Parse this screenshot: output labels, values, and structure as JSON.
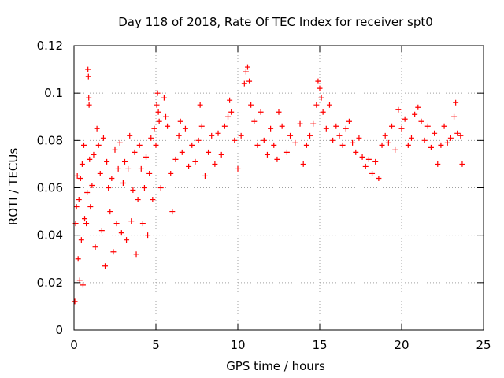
{
  "chart_data": {
    "type": "scatter",
    "title": "Day 118 of 2018, Rate Of TEC Index for receiver spt0",
    "xlabel": "GPS time / hours",
    "ylabel": "ROTI / TECUs",
    "xlim": [
      0,
      25
    ],
    "ylim": [
      0,
      0.12
    ],
    "xticks": [
      0,
      5,
      10,
      15,
      20,
      25
    ],
    "yticks": [
      0,
      0.02,
      0.04,
      0.06,
      0.08,
      0.1,
      0.12
    ],
    "xtick_labels": [
      "0",
      "5",
      "10",
      "15",
      "20",
      "25"
    ],
    "ytick_labels": [
      "0",
      "0.02",
      "0.04",
      "0.06",
      "0.08",
      "0.1",
      "0.12"
    ],
    "grid": true,
    "marker": "+",
    "series": [
      {
        "name": "ROTI",
        "color": "#ff0000",
        "points": [
          [
            0.05,
            0.012
          ],
          [
            0.1,
            0.045
          ],
          [
            0.15,
            0.052
          ],
          [
            0.2,
            0.065
          ],
          [
            0.25,
            0.03
          ],
          [
            0.3,
            0.055
          ],
          [
            0.35,
            0.021
          ],
          [
            0.4,
            0.064
          ],
          [
            0.45,
            0.038
          ],
          [
            0.5,
            0.07
          ],
          [
            0.55,
            0.019
          ],
          [
            0.6,
            0.078
          ],
          [
            0.65,
            0.047
          ],
          [
            0.75,
            0.045
          ],
          [
            0.8,
            0.058
          ],
          [
            0.85,
            0.11
          ],
          [
            0.88,
            0.107
          ],
          [
            0.9,
            0.098
          ],
          [
            0.92,
            0.095
          ],
          [
            0.95,
            0.072
          ],
          [
            1.0,
            0.052
          ],
          [
            1.1,
            0.061
          ],
          [
            1.2,
            0.074
          ],
          [
            1.3,
            0.035
          ],
          [
            1.4,
            0.085
          ],
          [
            1.5,
            0.078
          ],
          [
            1.6,
            0.066
          ],
          [
            1.7,
            0.042
          ],
          [
            1.8,
            0.081
          ],
          [
            1.9,
            0.027
          ],
          [
            2.0,
            0.071
          ],
          [
            2.1,
            0.06
          ],
          [
            2.2,
            0.05
          ],
          [
            2.3,
            0.064
          ],
          [
            2.4,
            0.033
          ],
          [
            2.5,
            0.076
          ],
          [
            2.6,
            0.045
          ],
          [
            2.7,
            0.068
          ],
          [
            2.8,
            0.079
          ],
          [
            2.9,
            0.041
          ],
          [
            3.0,
            0.062
          ],
          [
            3.1,
            0.071
          ],
          [
            3.2,
            0.038
          ],
          [
            3.3,
            0.068
          ],
          [
            3.4,
            0.082
          ],
          [
            3.5,
            0.046
          ],
          [
            3.6,
            0.059
          ],
          [
            3.7,
            0.075
          ],
          [
            3.8,
            0.032
          ],
          [
            3.9,
            0.055
          ],
          [
            4.0,
            0.078
          ],
          [
            4.1,
            0.068
          ],
          [
            4.2,
            0.045
          ],
          [
            4.3,
            0.06
          ],
          [
            4.4,
            0.073
          ],
          [
            4.5,
            0.04
          ],
          [
            4.6,
            0.066
          ],
          [
            4.7,
            0.081
          ],
          [
            4.8,
            0.055
          ],
          [
            4.9,
            0.085
          ],
          [
            5.0,
            0.078
          ],
          [
            5.05,
            0.095
          ],
          [
            5.1,
            0.1
          ],
          [
            5.15,
            0.092
          ],
          [
            5.2,
            0.088
          ],
          [
            5.3,
            0.06
          ],
          [
            5.5,
            0.098
          ],
          [
            5.6,
            0.09
          ],
          [
            5.7,
            0.086
          ],
          [
            5.9,
            0.066
          ],
          [
            6.0,
            0.05
          ],
          [
            6.2,
            0.072
          ],
          [
            6.4,
            0.082
          ],
          [
            6.5,
            0.088
          ],
          [
            6.6,
            0.075
          ],
          [
            6.8,
            0.085
          ],
          [
            7.0,
            0.069
          ],
          [
            7.2,
            0.078
          ],
          [
            7.4,
            0.071
          ],
          [
            7.6,
            0.08
          ],
          [
            7.7,
            0.095
          ],
          [
            7.8,
            0.086
          ],
          [
            8.0,
            0.065
          ],
          [
            8.2,
            0.075
          ],
          [
            8.4,
            0.082
          ],
          [
            8.6,
            0.07
          ],
          [
            8.8,
            0.083
          ],
          [
            9.0,
            0.074
          ],
          [
            9.2,
            0.086
          ],
          [
            9.4,
            0.09
          ],
          [
            9.5,
            0.097
          ],
          [
            9.6,
            0.092
          ],
          [
            9.8,
            0.08
          ],
          [
            10.0,
            0.068
          ],
          [
            10.2,
            0.082
          ],
          [
            10.4,
            0.104
          ],
          [
            10.5,
            0.109
          ],
          [
            10.6,
            0.111
          ],
          [
            10.7,
            0.105
          ],
          [
            10.8,
            0.095
          ],
          [
            11.0,
            0.088
          ],
          [
            11.2,
            0.078
          ],
          [
            11.4,
            0.092
          ],
          [
            11.6,
            0.08
          ],
          [
            11.8,
            0.074
          ],
          [
            12.0,
            0.085
          ],
          [
            12.2,
            0.078
          ],
          [
            12.4,
            0.072
          ],
          [
            12.5,
            0.092
          ],
          [
            12.7,
            0.086
          ],
          [
            13.0,
            0.075
          ],
          [
            13.2,
            0.082
          ],
          [
            13.5,
            0.079
          ],
          [
            13.8,
            0.087
          ],
          [
            14.0,
            0.07
          ],
          [
            14.2,
            0.078
          ],
          [
            14.4,
            0.082
          ],
          [
            14.6,
            0.087
          ],
          [
            14.8,
            0.095
          ],
          [
            14.9,
            0.105
          ],
          [
            15.0,
            0.102
          ],
          [
            15.1,
            0.098
          ],
          [
            15.2,
            0.092
          ],
          [
            15.4,
            0.085
          ],
          [
            15.6,
            0.095
          ],
          [
            15.8,
            0.08
          ],
          [
            16.0,
            0.086
          ],
          [
            16.2,
            0.082
          ],
          [
            16.4,
            0.078
          ],
          [
            16.6,
            0.085
          ],
          [
            16.8,
            0.088
          ],
          [
            17.0,
            0.079
          ],
          [
            17.2,
            0.075
          ],
          [
            17.4,
            0.081
          ],
          [
            17.6,
            0.073
          ],
          [
            17.8,
            0.069
          ],
          [
            18.0,
            0.072
          ],
          [
            18.2,
            0.066
          ],
          [
            18.4,
            0.071
          ],
          [
            18.6,
            0.064
          ],
          [
            18.8,
            0.078
          ],
          [
            19.0,
            0.082
          ],
          [
            19.2,
            0.079
          ],
          [
            19.4,
            0.086
          ],
          [
            19.6,
            0.076
          ],
          [
            19.8,
            0.093
          ],
          [
            20.0,
            0.085
          ],
          [
            20.2,
            0.089
          ],
          [
            20.4,
            0.078
          ],
          [
            20.6,
            0.081
          ],
          [
            20.8,
            0.091
          ],
          [
            21.0,
            0.094
          ],
          [
            21.2,
            0.088
          ],
          [
            21.4,
            0.08
          ],
          [
            21.6,
            0.086
          ],
          [
            21.8,
            0.077
          ],
          [
            22.0,
            0.083
          ],
          [
            22.2,
            0.07
          ],
          [
            22.4,
            0.078
          ],
          [
            22.6,
            0.086
          ],
          [
            22.8,
            0.079
          ],
          [
            23.0,
            0.081
          ],
          [
            23.2,
            0.09
          ],
          [
            23.3,
            0.096
          ],
          [
            23.4,
            0.083
          ],
          [
            23.6,
            0.082
          ],
          [
            23.7,
            0.07
          ]
        ]
      }
    ]
  }
}
